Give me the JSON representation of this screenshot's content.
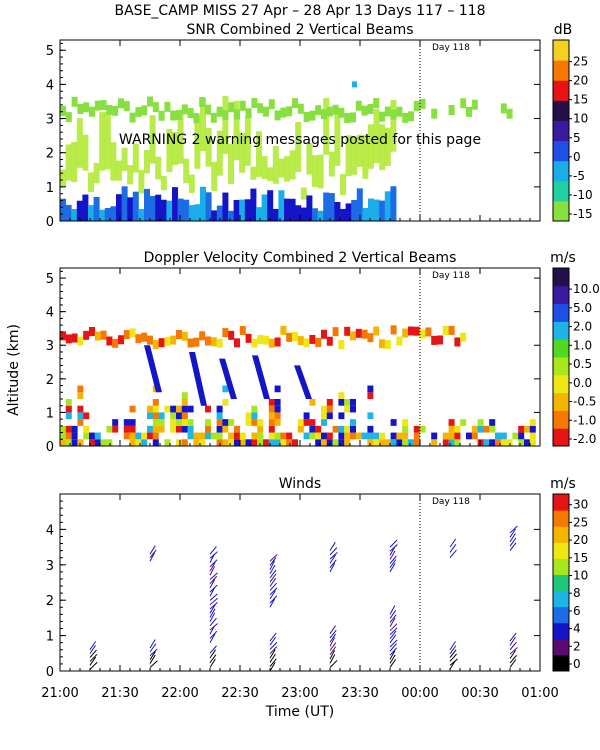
{
  "figure": {
    "title": "BASE_CAMP MISS  27 Apr – 28 Apr 13 Days 117 – 118",
    "xlabel": "Time (UT)",
    "ylabel": "Altitude (km)",
    "x_ticks": [
      "21:00",
      "21:30",
      "22:00",
      "22:30",
      "23:00",
      "23:30",
      "00:00",
      "00:30",
      "01:00"
    ],
    "day_marker": "Day 118",
    "warning": "WARNING  2 warning messages posted for this page"
  },
  "colors": {
    "scale": [
      "#000000",
      "#5a0a70",
      "#1414c8",
      "#1e6be6",
      "#1fb4e6",
      "#1ec878",
      "#52d81e",
      "#a8e61e",
      "#f0e614",
      "#f5b400",
      "#f57800",
      "#e61414"
    ]
  },
  "chart_data": [
    {
      "type": "heatmap",
      "title": "SNR Combined 2 Vertical Beams",
      "unit": "dB",
      "ylim": [
        0,
        5.3
      ],
      "y_ticks": [
        "0",
        "1",
        "2",
        "3",
        "4",
        "5"
      ],
      "colorbar": [
        "-15",
        "-10",
        "-5",
        "0",
        "5",
        "10",
        "15",
        "20",
        "25"
      ],
      "colorbar_colors": [
        "#88e040",
        "#1fd0a0",
        "#1aaee8",
        "#1e50e6",
        "#3a1aa0",
        "#26104a",
        "#e61414",
        "#f57800",
        "#f5d020"
      ]
    },
    {
      "type": "heatmap",
      "title": "Doppler Velocity Combined 2 Vertical Beams",
      "unit": "m/s",
      "ylim": [
        0,
        5.3
      ],
      "y_ticks": [
        "0",
        "1",
        "2",
        "3",
        "4",
        "5"
      ],
      "colorbar": [
        "-2.0",
        "-1.0",
        "-0.5",
        "0.0",
        "0.5",
        "1.0",
        "2.0",
        "5.0",
        "10.0"
      ],
      "colorbar_colors": [
        "#e61414",
        "#f57800",
        "#f5b400",
        "#f0e614",
        "#a8e61e",
        "#52d81e",
        "#1fb4e6",
        "#1e50e6",
        "#3a1aa0",
        "#26104a"
      ]
    },
    {
      "type": "scatter",
      "title": "Winds",
      "unit": "m/s",
      "ylim": [
        0,
        5
      ],
      "y_ticks": [
        "0",
        "1",
        "2",
        "3",
        "4"
      ],
      "colorbar": [
        "0",
        "2",
        "4",
        "6",
        "8",
        "10",
        "15",
        "20",
        "25",
        "30"
      ],
      "colorbar_colors": [
        "#000000",
        "#5a0a70",
        "#1414c8",
        "#1e6be6",
        "#1fb4e6",
        "#1ec878",
        "#a8e61e",
        "#f0e614",
        "#f5b400",
        "#f57800",
        "#e61414"
      ],
      "profiles": [
        {
          "time": "21:15",
          "low": [
            0.05,
            0.6
          ],
          "high": []
        },
        {
          "time": "21:45",
          "low": [
            0.1,
            0.65
          ],
          "high": [
            3.1,
            3.3
          ]
        },
        {
          "time": "22:15",
          "low": [
            0.1,
            0.5
          ],
          "high": [
            0.8,
            3.3
          ]
        },
        {
          "time": "22:45",
          "low": [
            0.0,
            0.85
          ],
          "high": [
            1.8,
            3.1
          ]
        },
        {
          "time": "23:15",
          "low": [
            0.1,
            1.05
          ],
          "high": [
            2.8,
            3.4
          ]
        },
        {
          "time": "23:45",
          "low": [
            0.1,
            1.6
          ],
          "high": [
            2.8,
            3.5
          ]
        },
        {
          "time": "00:15",
          "low": [
            0.05,
            0.6
          ],
          "high": [
            3.2,
            3.5
          ]
        },
        {
          "time": "00:45",
          "low": [
            0.1,
            0.85
          ],
          "high": [
            3.4,
            3.9
          ]
        }
      ]
    }
  ]
}
